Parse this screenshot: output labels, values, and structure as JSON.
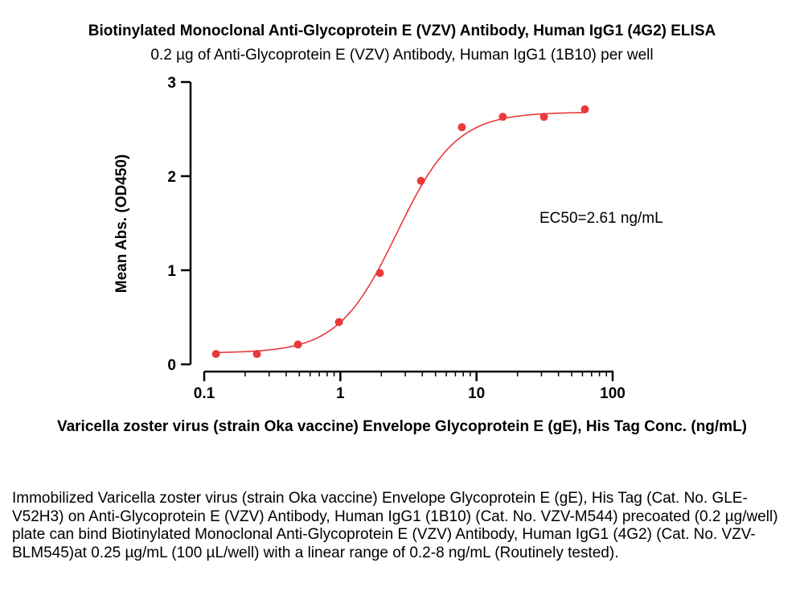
{
  "chart_data": {
    "type": "scatter",
    "title": "Biotinylated Monoclonal Anti-Glycoprotein E (VZV) Antibody, Human IgG1 (4G2) ELISA",
    "subtitle": "0.2 µg of Anti-Glycoprotein E (VZV) Antibody, Human IgG1 (1B10) per well",
    "xlabel": "Varicella zoster virus (strain Oka vaccine) Envelope Glycoprotein E (gE), His Tag Conc. (ng/mL)",
    "ylabel": "Mean Abs. (OD450)",
    "x_scale": "log",
    "xlim": [
      0.1,
      100
    ],
    "ylim": [
      0,
      3
    ],
    "x_ticks": [
      "0.1",
      "1",
      "10",
      "100"
    ],
    "y_ticks": [
      "0",
      "1",
      "2",
      "3"
    ],
    "points": [
      {
        "x": 0.122,
        "y": 0.11
      },
      {
        "x": 0.244,
        "y": 0.11
      },
      {
        "x": 0.488,
        "y": 0.21
      },
      {
        "x": 0.977,
        "y": 0.45
      },
      {
        "x": 1.95,
        "y": 0.97
      },
      {
        "x": 3.91,
        "y": 1.95
      },
      {
        "x": 7.81,
        "y": 2.52
      },
      {
        "x": 15.6,
        "y": 2.63
      },
      {
        "x": 31.3,
        "y": 2.63
      },
      {
        "x": 62.5,
        "y": 2.71
      }
    ],
    "fit": {
      "bottom": 0.12,
      "top": 2.68,
      "ec50": 2.61,
      "hill": 2.0
    },
    "annotation": "EC50=2.61 ng/mL",
    "color": "#e83a3a"
  },
  "caption": "Immobilized Varicella zoster virus (strain Oka vaccine) Envelope Glycoprotein E (gE), His Tag (Cat. No. GLE-V52H3) on Anti-Glycoprotein E (VZV) Antibody, Human IgG1 (1B10) (Cat. No. VZV-M544) precoated (0.2 µg/well) plate can bind Biotinylated Monoclonal Anti-Glycoprotein E (VZV) Antibody, Human IgG1 (4G2) (Cat. No. VZV-BLM545)at 0.25 µg/mL (100 µL/well) with a linear range of 0.2-8 ng/mL (Routinely tested)."
}
